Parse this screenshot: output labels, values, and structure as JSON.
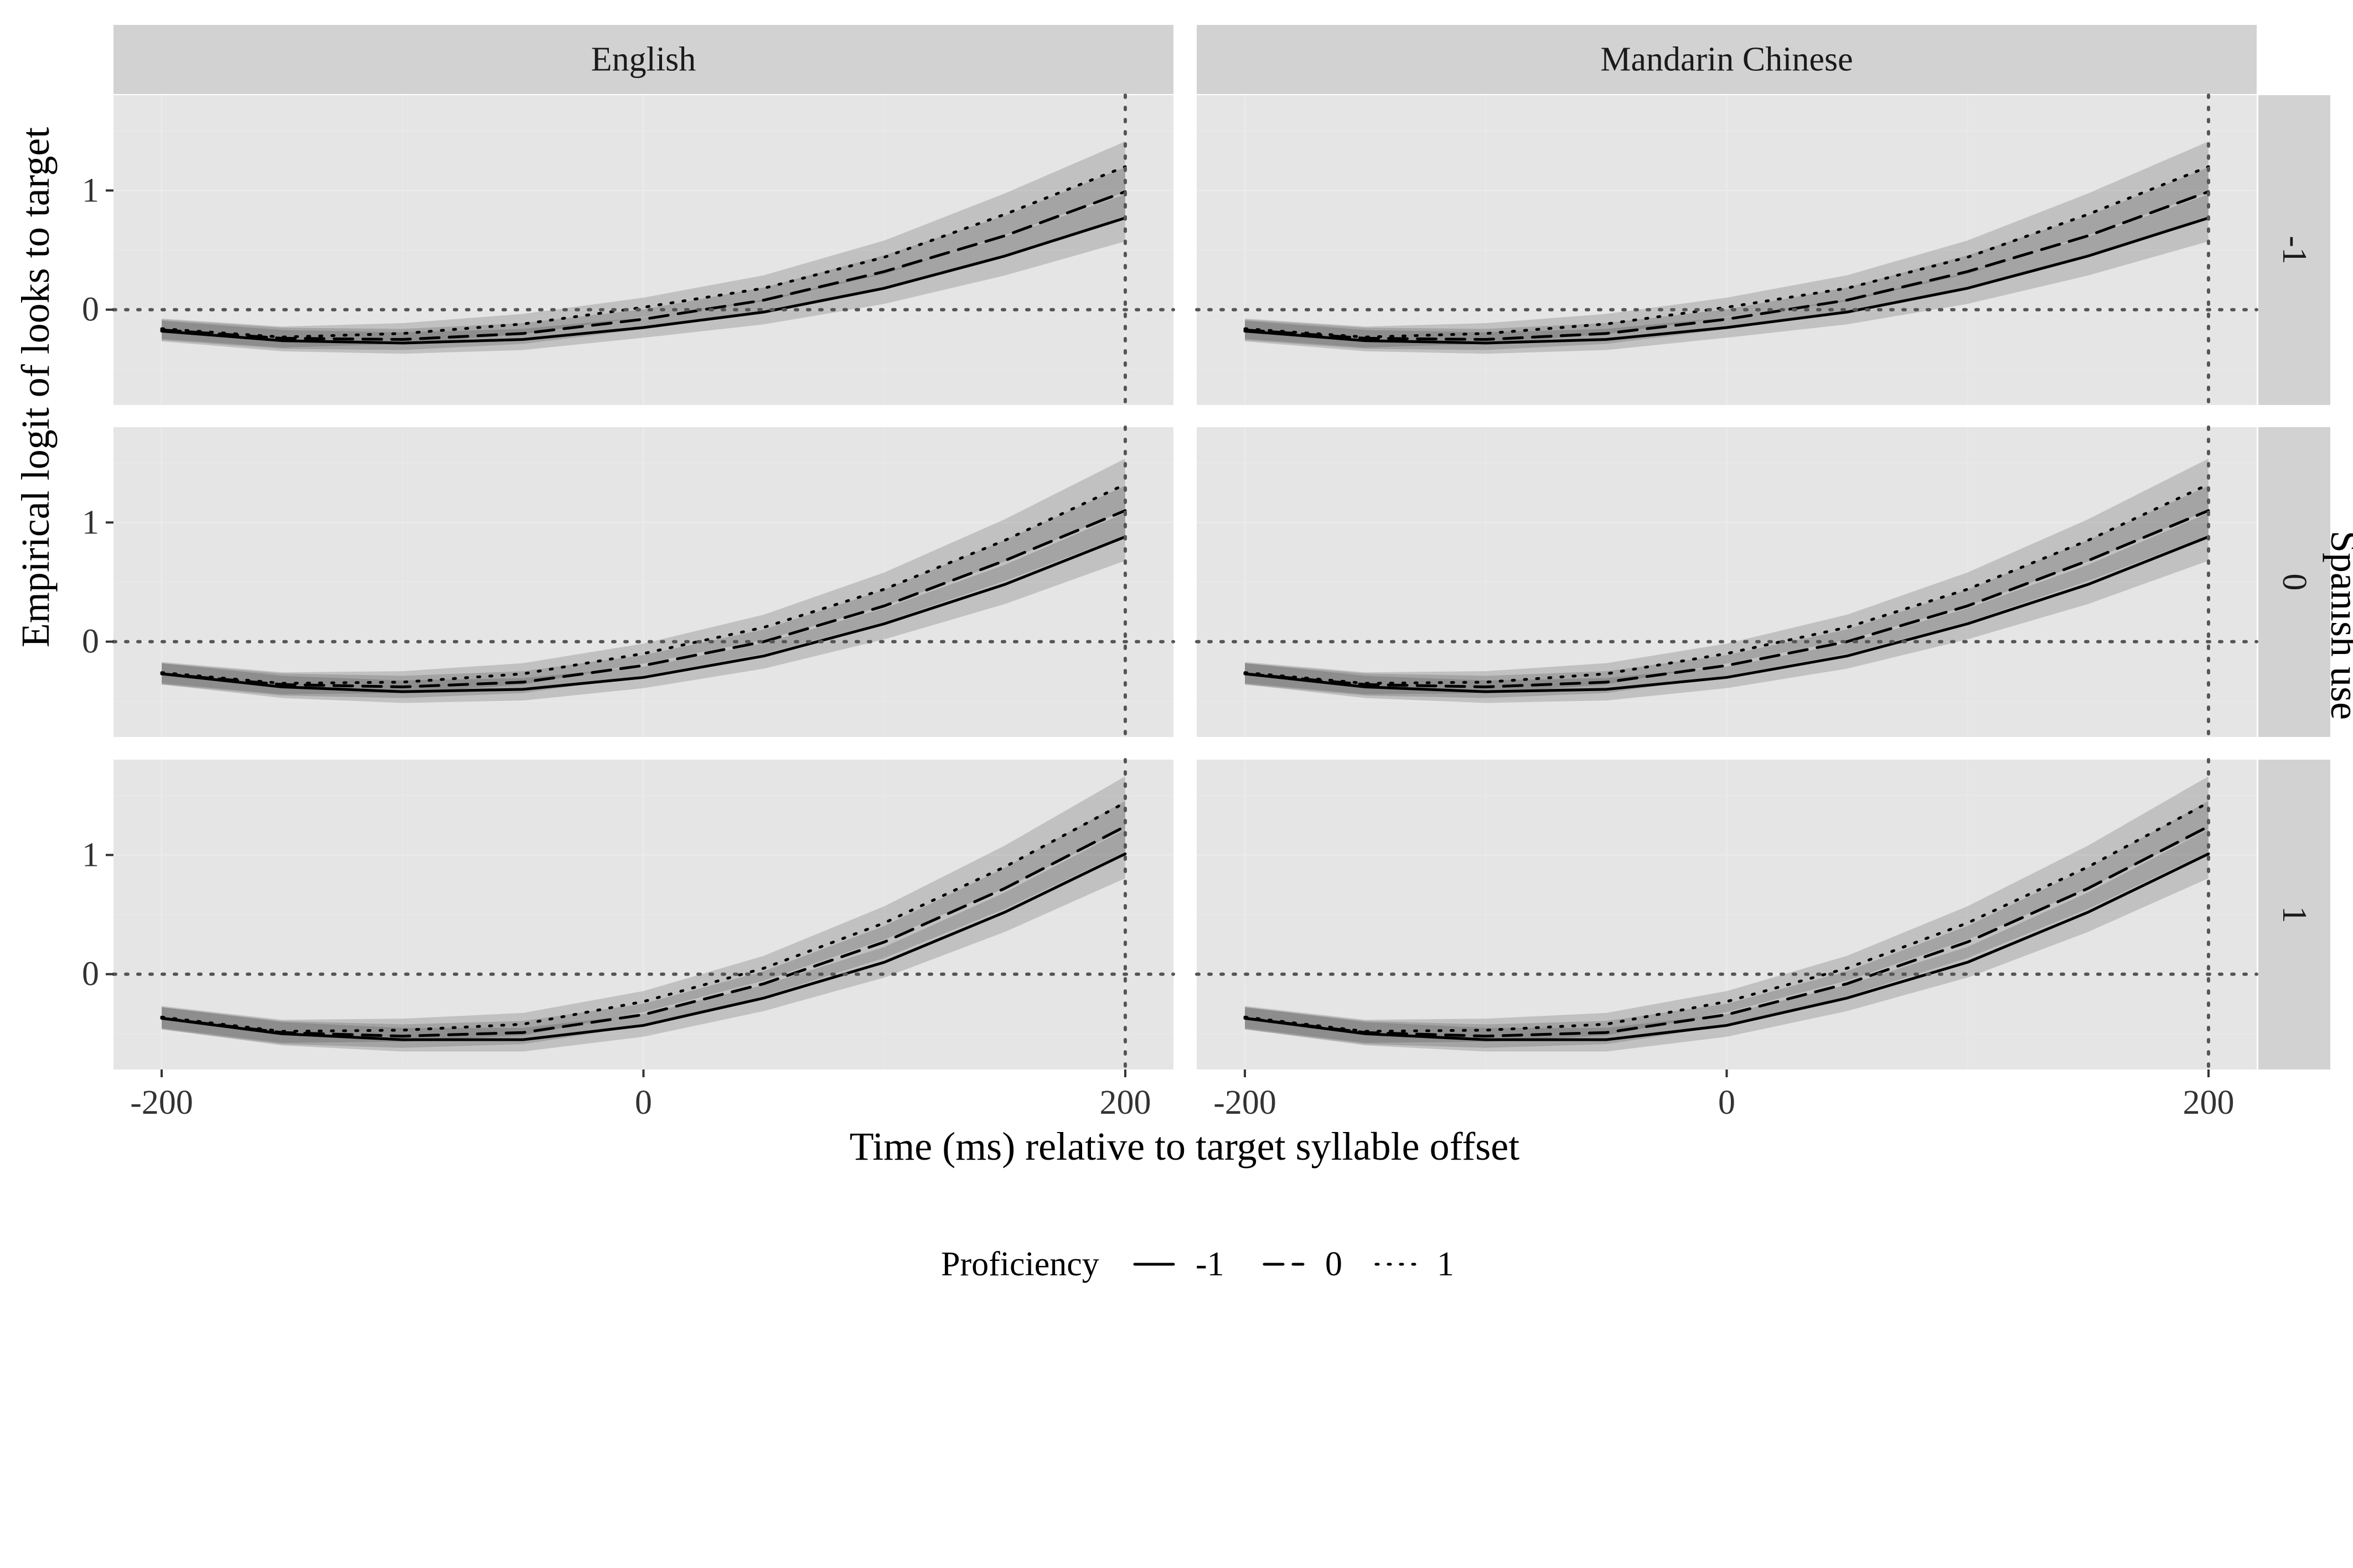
{
  "chart_data": {
    "type": "line",
    "ylabel": "Empirical logit of looks to target",
    "xlabel": "Time (ms) relative to target syllable offset",
    "x": [
      -200,
      -150,
      -100,
      -50,
      0,
      50,
      100,
      150,
      200
    ],
    "x_ticks": [
      "-200",
      "0",
      "200"
    ],
    "y_ticks": [
      "0",
      "1"
    ],
    "xlim": [
      -220,
      220
    ],
    "ylim": [
      -0.8,
      1.8
    ],
    "column_facets": [
      "English",
      "Mandarin Chinese"
    ],
    "row_facet_title": "Spanish use",
    "row_facets": [
      "-1",
      "0",
      "1"
    ],
    "reference_lines": {
      "x": 200,
      "y": 0
    },
    "legend": {
      "title": "Proficiency",
      "position": "bottom",
      "entries": [
        {
          "label": "-1",
          "linetype": "solid"
        },
        {
          "label": "0",
          "linetype": "dashed"
        },
        {
          "label": "1",
          "linetype": "dotted"
        }
      ]
    },
    "grid": true,
    "band_color": "#333333",
    "panels": [
      {
        "column": "English",
        "row": "-1",
        "series": [
          {
            "proficiency": "-1",
            "values": [
              -0.18,
              -0.26,
              -0.28,
              -0.25,
              -0.15,
              -0.02,
              0.18,
              0.45,
              0.77
            ]
          },
          {
            "proficiency": "0",
            "values": [
              -0.17,
              -0.24,
              -0.25,
              -0.2,
              -0.08,
              0.08,
              0.32,
              0.62,
              0.99
            ]
          },
          {
            "proficiency": "1",
            "values": [
              -0.16,
              -0.23,
              -0.2,
              -0.12,
              0.02,
              0.18,
              0.44,
              0.8,
              1.2
            ]
          }
        ]
      },
      {
        "column": "Mandarin Chinese",
        "row": "-1",
        "series": [
          {
            "proficiency": "-1",
            "values": [
              -0.18,
              -0.26,
              -0.28,
              -0.25,
              -0.15,
              -0.02,
              0.18,
              0.45,
              0.77
            ]
          },
          {
            "proficiency": "0",
            "values": [
              -0.17,
              -0.24,
              -0.25,
              -0.2,
              -0.08,
              0.08,
              0.32,
              0.62,
              0.99
            ]
          },
          {
            "proficiency": "1",
            "values": [
              -0.16,
              -0.23,
              -0.2,
              -0.12,
              0.02,
              0.18,
              0.44,
              0.8,
              1.2
            ]
          }
        ]
      },
      {
        "column": "English",
        "row": "0",
        "series": [
          {
            "proficiency": "-1",
            "values": [
              -0.27,
              -0.38,
              -0.42,
              -0.4,
              -0.3,
              -0.12,
              0.15,
              0.48,
              0.88
            ]
          },
          {
            "proficiency": "0",
            "values": [
              -0.27,
              -0.36,
              -0.38,
              -0.34,
              -0.2,
              0.0,
              0.3,
              0.68,
              1.1
            ]
          },
          {
            "proficiency": "1",
            "values": [
              -0.26,
              -0.35,
              -0.34,
              -0.27,
              -0.1,
              0.12,
              0.44,
              0.85,
              1.32
            ]
          }
        ]
      },
      {
        "column": "Mandarin Chinese",
        "row": "0",
        "series": [
          {
            "proficiency": "-1",
            "values": [
              -0.27,
              -0.38,
              -0.42,
              -0.4,
              -0.3,
              -0.12,
              0.15,
              0.48,
              0.88
            ]
          },
          {
            "proficiency": "0",
            "values": [
              -0.27,
              -0.36,
              -0.38,
              -0.34,
              -0.2,
              0.0,
              0.3,
              0.68,
              1.1
            ]
          },
          {
            "proficiency": "1",
            "values": [
              -0.26,
              -0.35,
              -0.34,
              -0.27,
              -0.1,
              0.12,
              0.44,
              0.85,
              1.32
            ]
          }
        ]
      },
      {
        "column": "English",
        "row": "1",
        "series": [
          {
            "proficiency": "-1",
            "values": [
              -0.37,
              -0.5,
              -0.55,
              -0.55,
              -0.43,
              -0.2,
              0.1,
              0.52,
              1.01
            ]
          },
          {
            "proficiency": "0",
            "values": [
              -0.37,
              -0.49,
              -0.52,
              -0.49,
              -0.34,
              -0.08,
              0.27,
              0.72,
              1.24
            ]
          },
          {
            "proficiency": "1",
            "values": [
              -0.36,
              -0.48,
              -0.47,
              -0.42,
              -0.23,
              0.05,
              0.43,
              0.9,
              1.44
            ]
          }
        ]
      },
      {
        "column": "Mandarin Chinese",
        "row": "1",
        "series": [
          {
            "proficiency": "-1",
            "values": [
              -0.37,
              -0.5,
              -0.55,
              -0.55,
              -0.43,
              -0.2,
              0.1,
              0.52,
              1.01
            ]
          },
          {
            "proficiency": "0",
            "values": [
              -0.37,
              -0.49,
              -0.52,
              -0.49,
              -0.34,
              -0.08,
              0.27,
              0.72,
              1.24
            ]
          },
          {
            "proficiency": "1",
            "values": [
              -0.36,
              -0.48,
              -0.47,
              -0.42,
              -0.23,
              0.05,
              0.43,
              0.9,
              1.44
            ]
          }
        ]
      }
    ]
  }
}
